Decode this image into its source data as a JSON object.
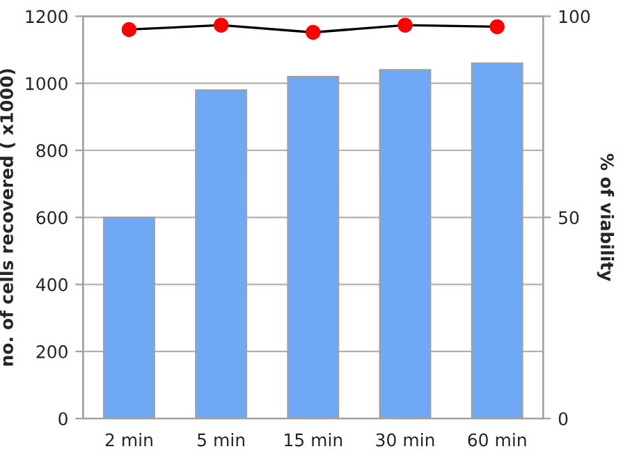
{
  "chart_data": {
    "type": "bar",
    "categories": [
      "2 min",
      "5 min",
      "15 min",
      "30 min",
      "60 min"
    ],
    "ylabel": "no. of cells recovered ( x1000)",
    "y2label": "% of viability",
    "series": [
      {
        "color": "#6fa8f5",
        "values": [
          600,
          980,
          1020,
          1040,
          1060
        ]
      },
      {
        "type": "line",
        "axis": "y2",
        "color": "#000000",
        "marker": "circle",
        "colors": [
          "#ff0000",
          "#ff0000",
          "#ff0000",
          "#ff0000",
          "#ff0000"
        ],
        "values": [
          96.7,
          97.8,
          96.0,
          97.8,
          97.4
        ]
      }
    ],
    "ylim": [
      0,
      1200
    ],
    "yticks": [
      0,
      200,
      400,
      600,
      800,
      1000,
      1200
    ],
    "y2lim": [
      0,
      100
    ],
    "y2ticks": [
      0,
      50,
      100
    ],
    "grid": "y"
  }
}
